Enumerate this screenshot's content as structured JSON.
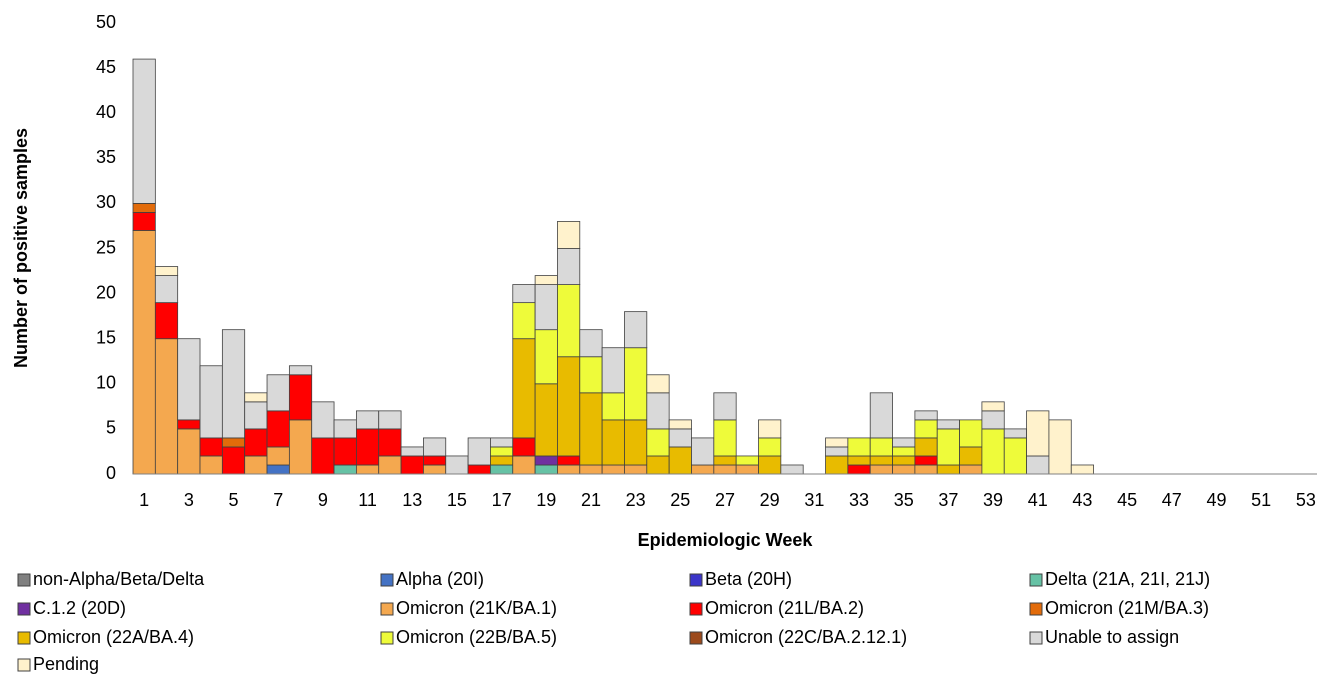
{
  "chart_data": {
    "type": "stacked-bar",
    "x_label": "Epidemiologic Week",
    "y_label": "Number of positive samples",
    "categories": [
      1,
      null,
      3,
      null,
      5,
      null,
      7,
      null,
      9,
      null,
      11,
      null,
      13,
      null,
      15,
      null,
      17,
      null,
      19,
      null,
      21,
      null,
      23,
      null,
      25,
      null,
      27,
      null,
      29,
      null,
      31,
      null,
      33,
      null,
      35,
      null,
      37,
      null,
      39,
      null,
      41,
      null,
      43,
      null,
      45,
      null,
      47,
      null,
      49,
      null,
      51,
      null,
      53
    ],
    "ylim": [
      0,
      50
    ],
    "yticks": [
      0,
      5,
      10,
      15,
      20,
      25,
      30,
      35,
      40,
      45,
      50
    ],
    "series": [
      {
        "name": "non-Alpha/Beta/Delta",
        "color": "#808080",
        "values": [
          0,
          0,
          0,
          0,
          0,
          0,
          0,
          0,
          0,
          0,
          0,
          0,
          0,
          0,
          0,
          0,
          0,
          0,
          0,
          0,
          0,
          0,
          0,
          0,
          0,
          0,
          0,
          0,
          0,
          0,
          0,
          0,
          0,
          0,
          0,
          0,
          0,
          0,
          0,
          0,
          0,
          0,
          0,
          0,
          0,
          0,
          0,
          0,
          0,
          0,
          0,
          0,
          0
        ]
      },
      {
        "name": "Alpha (20I)",
        "color": "#4472c4",
        "values": [
          0,
          0,
          0,
          0,
          0,
          0,
          1,
          0,
          0,
          0,
          0,
          0,
          0,
          0,
          0,
          0,
          0,
          0,
          0,
          0,
          0,
          0,
          0,
          0,
          0,
          0,
          0,
          0,
          0,
          0,
          0,
          0,
          0,
          0,
          0,
          0,
          0,
          0,
          0,
          0,
          0,
          0,
          0,
          0,
          0,
          0,
          0,
          0,
          0,
          0,
          0,
          0,
          0
        ]
      },
      {
        "name": "Beta (20H)",
        "color": "#3b35c9",
        "values": [
          0,
          0,
          0,
          0,
          0,
          0,
          0,
          0,
          0,
          0,
          0,
          0,
          0,
          0,
          0,
          0,
          0,
          0,
          0,
          0,
          0,
          0,
          0,
          0,
          0,
          0,
          0,
          0,
          0,
          0,
          0,
          0,
          0,
          0,
          0,
          0,
          0,
          0,
          0,
          0,
          0,
          0,
          0,
          0,
          0,
          0,
          0,
          0,
          0,
          0,
          0,
          0,
          0
        ]
      },
      {
        "name": "Delta (21A, 21I, 21J)",
        "color": "#66c2a5",
        "values": [
          0,
          0,
          0,
          0,
          0,
          0,
          0,
          0,
          0,
          1,
          0,
          0,
          0,
          0,
          0,
          0,
          1,
          0,
          1,
          0,
          0,
          0,
          0,
          0,
          0,
          0,
          0,
          0,
          0,
          0,
          0,
          0,
          0,
          0,
          0,
          0,
          0,
          0,
          0,
          0,
          0,
          0,
          0,
          0,
          0,
          0,
          0,
          0,
          0,
          0,
          0,
          0,
          0
        ]
      },
      {
        "name": "C.1.2 (20D)",
        "color": "#7030a0",
        "values": [
          0,
          0,
          0,
          0,
          0,
          0,
          0,
          0,
          0,
          0,
          0,
          0,
          0,
          0,
          0,
          0,
          0,
          0,
          1,
          0,
          0,
          0,
          0,
          0,
          0,
          0,
          0,
          0,
          0,
          0,
          0,
          0,
          0,
          0,
          0,
          0,
          0,
          0,
          0,
          0,
          0,
          0,
          0,
          0,
          0,
          0,
          0,
          0,
          0,
          0,
          0,
          0,
          0
        ]
      },
      {
        "name": "Omicron (21K/BA.1)",
        "color": "#f4a84f",
        "values": [
          27,
          15,
          5,
          2,
          0,
          2,
          2,
          6,
          0,
          0,
          1,
          2,
          0,
          1,
          0,
          0,
          0,
          2,
          0,
          1,
          1,
          1,
          1,
          0,
          0,
          1,
          1,
          1,
          0,
          0,
          0,
          0,
          0,
          1,
          1,
          1,
          0,
          1,
          0,
          0,
          0,
          0,
          0,
          0,
          0,
          0,
          0,
          0,
          0,
          0,
          0,
          0,
          0
        ]
      },
      {
        "name": "Omicron (21L/BA.2)",
        "color": "#ff0000",
        "values": [
          2,
          4,
          1,
          2,
          3,
          3,
          4,
          5,
          4,
          3,
          4,
          3,
          2,
          1,
          0,
          1,
          0,
          2,
          0,
          1,
          0,
          0,
          0,
          0,
          0,
          0,
          0,
          0,
          0,
          0,
          0,
          0,
          1,
          0,
          0,
          1,
          0,
          0,
          0,
          0,
          0,
          0,
          0,
          0,
          0,
          0,
          0,
          0,
          0,
          0,
          0,
          0,
          0
        ]
      },
      {
        "name": "Omicron (21M/BA.3)",
        "color": "#e26b0a",
        "values": [
          1,
          0,
          0,
          0,
          1,
          0,
          0,
          0,
          0,
          0,
          0,
          0,
          0,
          0,
          0,
          0,
          0,
          0,
          0,
          0,
          0,
          0,
          0,
          0,
          0,
          0,
          0,
          0,
          0,
          0,
          0,
          0,
          0,
          0,
          0,
          0,
          0,
          0,
          0,
          0,
          0,
          0,
          0,
          0,
          0,
          0,
          0,
          0,
          0,
          0,
          0,
          0,
          0
        ]
      },
      {
        "name": "Omicron (22A/BA.4)",
        "color": "#e8bb00",
        "values": [
          0,
          0,
          0,
          0,
          0,
          0,
          0,
          0,
          0,
          0,
          0,
          0,
          0,
          0,
          0,
          0,
          1,
          11,
          8,
          11,
          8,
          5,
          5,
          2,
          3,
          0,
          1,
          0,
          2,
          0,
          0,
          2,
          1,
          1,
          1,
          2,
          1,
          2,
          0,
          0,
          0,
          0,
          0,
          0,
          0,
          0,
          0,
          0,
          0,
          0,
          0,
          0,
          0
        ]
      },
      {
        "name": "Omicron (22B/BA.5)",
        "color": "#eefb3a",
        "values": [
          0,
          0,
          0,
          0,
          0,
          0,
          0,
          0,
          0,
          0,
          0,
          0,
          0,
          0,
          0,
          0,
          1,
          4,
          6,
          8,
          4,
          3,
          8,
          3,
          0,
          0,
          4,
          1,
          2,
          0,
          0,
          0,
          2,
          2,
          1,
          2,
          4,
          3,
          5,
          4,
          0,
          0,
          0,
          0,
          0,
          0,
          0,
          0,
          0,
          0,
          0,
          0,
          0
        ]
      },
      {
        "name": "Omicron (22C/BA.2.12.1)",
        "color": "#9c4a1c",
        "values": [
          0,
          0,
          0,
          0,
          0,
          0,
          0,
          0,
          0,
          0,
          0,
          0,
          0,
          0,
          0,
          0,
          0,
          0,
          0,
          0,
          0,
          0,
          0,
          0,
          0,
          0,
          0,
          0,
          0,
          0,
          0,
          0,
          0,
          0,
          0,
          0,
          0,
          0,
          0,
          0,
          0,
          0,
          0,
          0,
          0,
          0,
          0,
          0,
          0,
          0,
          0,
          0,
          0
        ]
      },
      {
        "name": "Unable to assign",
        "color": "#d9d9d9",
        "values": [
          16,
          3,
          9,
          8,
          12,
          3,
          4,
          1,
          4,
          2,
          2,
          2,
          1,
          2,
          2,
          3,
          1,
          2,
          5,
          4,
          3,
          5,
          4,
          4,
          2,
          3,
          3,
          0,
          0,
          1,
          0,
          1,
          0,
          5,
          1,
          1,
          1,
          0,
          2,
          1,
          2,
          0,
          0,
          0,
          0,
          0,
          0,
          0,
          0,
          0,
          0,
          0,
          0
        ]
      },
      {
        "name": "Pending",
        "color": "#fff2cc",
        "values": [
          0,
          1,
          0,
          0,
          0,
          1,
          0,
          0,
          0,
          0,
          0,
          0,
          0,
          0,
          0,
          0,
          0,
          0,
          1,
          3,
          0,
          0,
          0,
          2,
          1,
          0,
          0,
          0,
          2,
          0,
          0,
          1,
          0,
          0,
          0,
          0,
          0,
          0,
          1,
          0,
          5,
          6,
          1,
          0,
          0,
          0,
          0,
          0,
          0,
          0,
          0,
          0,
          0
        ]
      }
    ]
  }
}
